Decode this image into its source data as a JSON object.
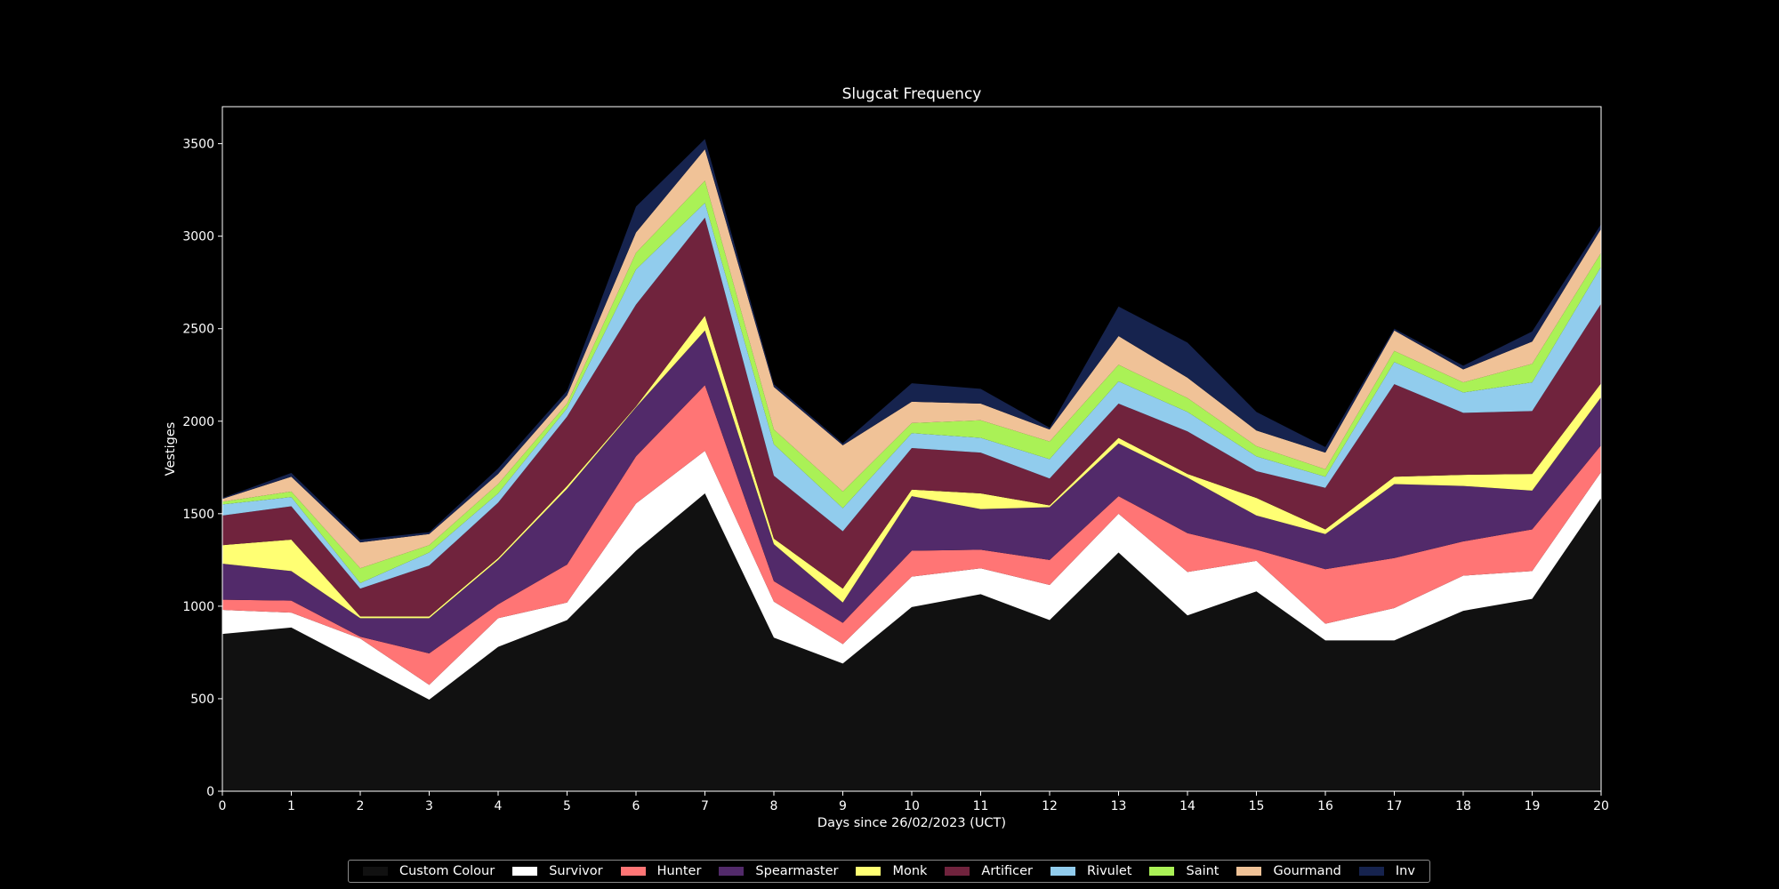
{
  "chart_data": {
    "type": "area",
    "stacked": true,
    "title": "Slugcat Frequency",
    "xlabel": "Days since 26/02/2023 (UCT)",
    "ylabel": "Vestiges",
    "xlim": [
      0,
      20
    ],
    "ylim": [
      0,
      3700
    ],
    "x": [
      0,
      1,
      2,
      3,
      4,
      5,
      6,
      7,
      8,
      9,
      10,
      11,
      12,
      13,
      14,
      15,
      16,
      17,
      18,
      19,
      20
    ],
    "xticks": [
      "0",
      "1",
      "2",
      "3",
      "4",
      "5",
      "6",
      "7",
      "8",
      "9",
      "10",
      "11",
      "12",
      "13",
      "14",
      "15",
      "16",
      "17",
      "18",
      "19",
      "20"
    ],
    "yticks": [
      "0",
      "500",
      "1000",
      "1500",
      "2000",
      "2500",
      "3000",
      "3500"
    ],
    "ytick_values": [
      0,
      500,
      1000,
      1500,
      2000,
      2500,
      3000,
      3500
    ],
    "grid": false,
    "legend_position": "bottom",
    "series": [
      {
        "name": "Custom Colour",
        "color": "#111111",
        "values": [
          850,
          885,
          690,
          495,
          780,
          925,
          1300,
          1610,
          830,
          690,
          995,
          1065,
          925,
          1290,
          950,
          1080,
          815,
          815,
          975,
          1040,
          1585
        ]
      },
      {
        "name": "Survivor",
        "color": "#ffffff",
        "values": [
          130,
          80,
          135,
          80,
          155,
          95,
          255,
          230,
          195,
          105,
          165,
          140,
          190,
          210,
          235,
          165,
          90,
          175,
          190,
          150,
          140
        ]
      },
      {
        "name": "Hunter",
        "color": "#ff7575",
        "values": [
          55,
          65,
          10,
          170,
          75,
          205,
          255,
          355,
          110,
          115,
          140,
          100,
          135,
          95,
          210,
          60,
          295,
          270,
          185,
          225,
          145
        ]
      },
      {
        "name": "Spearmaster",
        "color": "#522a6a",
        "values": [
          195,
          160,
          100,
          190,
          240,
          410,
          265,
          295,
          200,
          110,
          295,
          220,
          285,
          285,
          300,
          185,
          190,
          400,
          300,
          210,
          260
        ]
      },
      {
        "name": "Monk",
        "color": "#ffff73",
        "values": [
          100,
          170,
          10,
          10,
          10,
          15,
          5,
          80,
          30,
          75,
          35,
          85,
          10,
          30,
          20,
          95,
          25,
          40,
          60,
          90,
          75
        ]
      },
      {
        "name": "Artificer",
        "color": "#70233d",
        "values": [
          160,
          180,
          150,
          275,
          300,
          375,
          550,
          530,
          340,
          310,
          225,
          220,
          145,
          185,
          230,
          145,
          225,
          500,
          335,
          340,
          430
        ]
      },
      {
        "name": "Rivulet",
        "color": "#91cced",
        "values": [
          60,
          50,
          30,
          70,
          50,
          45,
          190,
          80,
          170,
          125,
          80,
          80,
          105,
          120,
          105,
          80,
          60,
          120,
          110,
          155,
          200
        ]
      },
      {
        "name": "Saint",
        "color": "#aaf156",
        "values": [
          15,
          30,
          80,
          40,
          50,
          25,
          90,
          120,
          80,
          90,
          55,
          95,
          95,
          90,
          75,
          55,
          40,
          60,
          55,
          100,
          75
        ]
      },
      {
        "name": "Gourmand",
        "color": "#f0c297",
        "values": [
          15,
          80,
          140,
          60,
          55,
          45,
          110,
          170,
          230,
          250,
          115,
          90,
          65,
          155,
          110,
          85,
          90,
          110,
          70,
          120,
          130
        ]
      },
      {
        "name": "Inv",
        "color": "#16234e",
        "values": [
          5,
          20,
          15,
          10,
          30,
          25,
          140,
          55,
          15,
          10,
          100,
          80,
          10,
          160,
          190,
          100,
          30,
          10,
          20,
          55,
          25
        ]
      }
    ]
  }
}
